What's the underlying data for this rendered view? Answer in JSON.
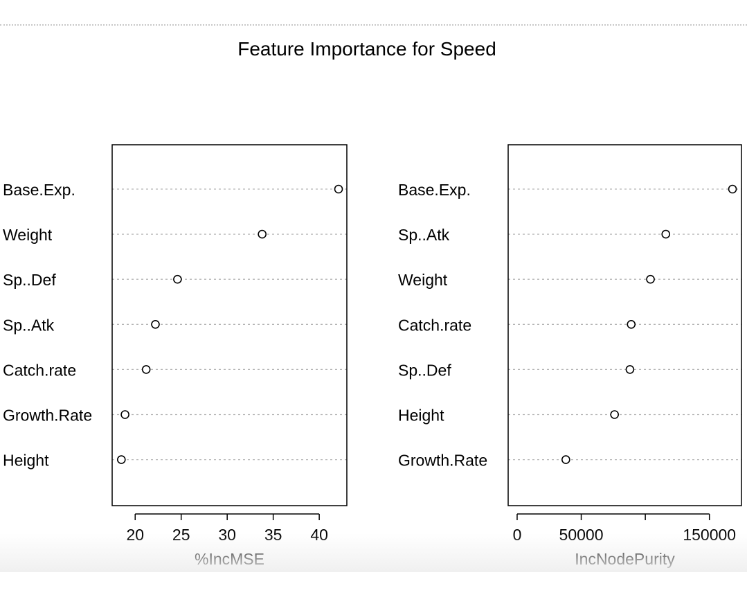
{
  "figure": {
    "title": "Feature Importance for Speed"
  },
  "chart_data": [
    {
      "type": "scatter",
      "subtype": "dotchart",
      "title": "",
      "xlabel": "%IncMSE",
      "ylabel": "",
      "categories": [
        "Base.Exp.",
        "Weight",
        "Sp..Def",
        "Sp..Atk",
        "Catch.rate",
        "Growth.Rate",
        "Height"
      ],
      "values": [
        42.1,
        33.8,
        24.6,
        22.2,
        21.2,
        18.9,
        18.5
      ],
      "xlim": [
        17.5,
        43
      ],
      "xticks": [
        20,
        25,
        30,
        35,
        40
      ],
      "xtick_labels": [
        "20",
        "25",
        "30",
        "35",
        "40"
      ],
      "grid": "dotted horizontal lines per category",
      "marker": "open circle"
    },
    {
      "type": "scatter",
      "subtype": "dotchart",
      "title": "",
      "xlabel": "IncNodePurity",
      "ylabel": "",
      "categories": [
        "Base.Exp.",
        "Sp..Atk",
        "Weight",
        "Catch.rate",
        "Sp..Def",
        "Height",
        "Growth.Rate"
      ],
      "values": [
        168000,
        116000,
        104000,
        89000,
        88000,
        76000,
        38000
      ],
      "xlim": [
        -7000,
        175000
      ],
      "xticks": [
        0,
        50000,
        100000,
        150000
      ],
      "xtick_labels": [
        "0",
        "50000",
        "",
        "150000"
      ],
      "grid": "dotted horizontal lines per category",
      "marker": "open circle"
    }
  ]
}
